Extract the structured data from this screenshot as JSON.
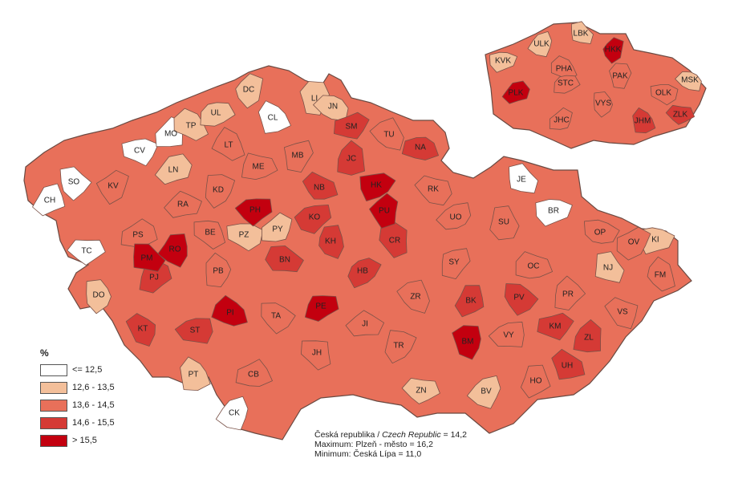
{
  "legend": {
    "title": "%",
    "classes": [
      {
        "label": "<= 12,5",
        "color": "#ffffff"
      },
      {
        "label": "12,6 - 13,5",
        "color": "#f3bf9a"
      },
      {
        "label": "13,6 - 14,5",
        "color": "#e8705a"
      },
      {
        "label": "14,6 - 15,5",
        "color": "#d53a35"
      },
      {
        "label": "> 15,5",
        "color": "#c3000f"
      }
    ]
  },
  "stats": {
    "country_cz": "Česká republika",
    "separator": " / ",
    "country_en": "Czech Republic",
    "country_value": " = 14,2",
    "max_line": "Maximum: Plzeň - město = 16,2",
    "min_line": "Minimum: Česká Lípa = 11,0"
  },
  "districts": [
    {
      "code": "CH",
      "cls": 0
    },
    {
      "code": "SO",
      "cls": 0
    },
    {
      "code": "CV",
      "cls": 0
    },
    {
      "code": "MO",
      "cls": 0
    },
    {
      "code": "CL",
      "cls": 0
    },
    {
      "code": "TC",
      "cls": 0
    },
    {
      "code": "CK",
      "cls": 0
    },
    {
      "code": "JE",
      "cls": 0
    },
    {
      "code": "BR",
      "cls": 0
    },
    {
      "code": "DC",
      "cls": 1
    },
    {
      "code": "TP",
      "cls": 1
    },
    {
      "code": "UL",
      "cls": 1
    },
    {
      "code": "LI",
      "cls": 1
    },
    {
      "code": "JN",
      "cls": 1
    },
    {
      "code": "LN",
      "cls": 1
    },
    {
      "code": "DO",
      "cls": 1
    },
    {
      "code": "PZ",
      "cls": 1
    },
    {
      "code": "PY",
      "cls": 1
    },
    {
      "code": "PT",
      "cls": 1
    },
    {
      "code": "ZN",
      "cls": 1
    },
    {
      "code": "BV",
      "cls": 1
    },
    {
      "code": "NJ",
      "cls": 1
    },
    {
      "code": "KI",
      "cls": 1
    },
    {
      "code": "KV",
      "cls": 2
    },
    {
      "code": "LT",
      "cls": 2
    },
    {
      "code": "ME",
      "cls": 2
    },
    {
      "code": "MB",
      "cls": 2
    },
    {
      "code": "TU",
      "cls": 2
    },
    {
      "code": "RA",
      "cls": 2
    },
    {
      "code": "KD",
      "cls": 2
    },
    {
      "code": "BE",
      "cls": 2
    },
    {
      "code": "PS",
      "cls": 2
    },
    {
      "code": "PB",
      "cls": 2
    },
    {
      "code": "RK",
      "cls": 2
    },
    {
      "code": "UO",
      "cls": 2
    },
    {
      "code": "SU",
      "cls": 2
    },
    {
      "code": "OP",
      "cls": 2
    },
    {
      "code": "OV",
      "cls": 2
    },
    {
      "code": "FM",
      "cls": 2
    },
    {
      "code": "OC",
      "cls": 2
    },
    {
      "code": "SY",
      "cls": 2
    },
    {
      "code": "ZR",
      "cls": 2
    },
    {
      "code": "JI",
      "cls": 2
    },
    {
      "code": "TR",
      "cls": 2
    },
    {
      "code": "JH",
      "cls": 2
    },
    {
      "code": "CB",
      "cls": 2
    },
    {
      "code": "PR",
      "cls": 2
    },
    {
      "code": "VS",
      "cls": 2
    },
    {
      "code": "VY",
      "cls": 2
    },
    {
      "code": "HO",
      "cls": 2
    },
    {
      "code": "TA",
      "cls": 2
    },
    {
      "code": "SM",
      "cls": 3
    },
    {
      "code": "JC",
      "cls": 3
    },
    {
      "code": "NB",
      "cls": 3
    },
    {
      "code": "KO",
      "cls": 3
    },
    {
      "code": "KH",
      "cls": 3
    },
    {
      "code": "BN",
      "cls": 3
    },
    {
      "code": "HB",
      "cls": 3
    },
    {
      "code": "CR",
      "cls": 3
    },
    {
      "code": "NA",
      "cls": 3
    },
    {
      "code": "PJ",
      "cls": 3
    },
    {
      "code": "KT",
      "cls": 3
    },
    {
      "code": "ST",
      "cls": 3
    },
    {
      "code": "BK",
      "cls": 3
    },
    {
      "code": "PV",
      "cls": 3
    },
    {
      "code": "KM",
      "cls": 3
    },
    {
      "code": "ZL",
      "cls": 3
    },
    {
      "code": "UH",
      "cls": 3
    },
    {
      "code": "PH",
      "cls": 4
    },
    {
      "code": "RO",
      "cls": 4
    },
    {
      "code": "PM",
      "cls": 4
    },
    {
      "code": "HK",
      "cls": 4
    },
    {
      "code": "PU",
      "cls": 4
    },
    {
      "code": "PI",
      "cls": 4
    },
    {
      "code": "PE",
      "cls": 4
    },
    {
      "code": "BM",
      "cls": 4
    }
  ],
  "regions": [
    {
      "code": "ULK",
      "cls": 1
    },
    {
      "code": "LBK",
      "cls": 1
    },
    {
      "code": "KVK",
      "cls": 1
    },
    {
      "code": "HKK",
      "cls": 4
    },
    {
      "code": "PHA",
      "cls": 2
    },
    {
      "code": "STC",
      "cls": 2
    },
    {
      "code": "PAK",
      "cls": 2
    },
    {
      "code": "MSK",
      "cls": 1
    },
    {
      "code": "PLK",
      "cls": 4
    },
    {
      "code": "VYS",
      "cls": 2
    },
    {
      "code": "OLK",
      "cls": 2
    },
    {
      "code": "JHC",
      "cls": 2
    },
    {
      "code": "JHM",
      "cls": 3
    },
    {
      "code": "ZLK",
      "cls": 3
    }
  ]
}
